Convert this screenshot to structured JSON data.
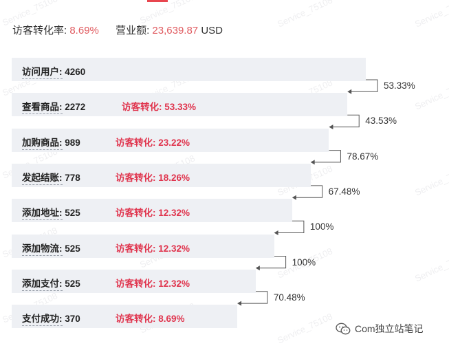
{
  "summary": {
    "visitor_conversion_label": "访客转化率:",
    "visitor_conversion_value": "8.69%",
    "revenue_label": "营业额:",
    "revenue_value": "23,639.87",
    "revenue_currency": "USD"
  },
  "funnel": {
    "conversion_label": "访客转化:",
    "stages": [
      {
        "name": "访问用户",
        "count": "4260",
        "conversion": "",
        "step_rate": "",
        "fraction": 1.0
      },
      {
        "name": "查看商品",
        "count": "2272",
        "conversion": "53.33%",
        "step_rate": "53.33%",
        "fraction": 0.948
      },
      {
        "name": "加购商品",
        "count": "989",
        "conversion": "23.22%",
        "step_rate": "43.53%",
        "fraction": 0.896
      },
      {
        "name": "发起结账",
        "count": "778",
        "conversion": "18.26%",
        "step_rate": "78.67%",
        "fraction": 0.844
      },
      {
        "name": "添加地址",
        "count": "525",
        "conversion": "12.32%",
        "step_rate": "67.48%",
        "fraction": 0.792
      },
      {
        "name": "添加物流",
        "count": "525",
        "conversion": "12.32%",
        "step_rate": "100%",
        "fraction": 0.741
      },
      {
        "name": "添加支付",
        "count": "525",
        "conversion": "12.32%",
        "step_rate": "100%",
        "fraction": 0.689
      },
      {
        "name": "支付成功",
        "count": "370",
        "conversion": "8.69%",
        "step_rate": "70.48%",
        "fraction": 0.637
      }
    ]
  },
  "watermark": "Service_75108",
  "brand": {
    "icon": "wechat-icon",
    "text": "Com独立站笔记"
  },
  "colors": {
    "accent": "#e8464f",
    "conversion_text": "#e0344d",
    "bar_fill": "#eef0f4"
  }
}
